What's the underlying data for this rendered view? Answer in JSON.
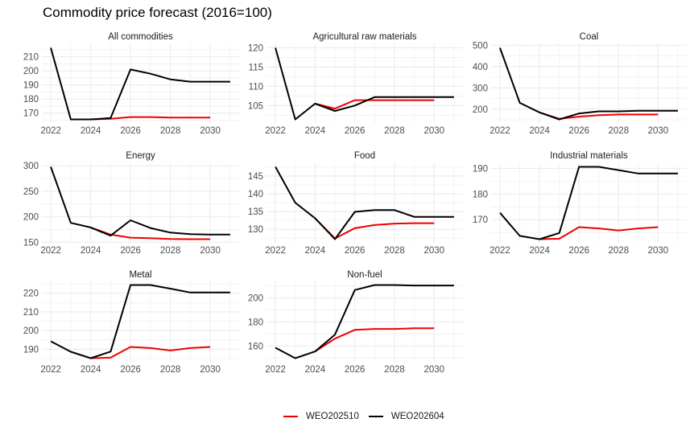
{
  "chart_data": {
    "type": "line",
    "title": "Commodity price forecast (2016=100)",
    "xlabel": "",
    "ylabel": "",
    "legend": {
      "placement": "bottom",
      "entries": [
        {
          "name": "WEO202510",
          "color": "#ee0000"
        },
        {
          "name": "WEO202604",
          "color": "#000000"
        }
      ]
    },
    "x_ticks": [
      2022,
      2024,
      2026,
      2028,
      2030
    ],
    "x_range": [
      2022,
      2031
    ],
    "grid": true,
    "panels": [
      {
        "title": "All commodities",
        "y_ticks": [
          170,
          180,
          190,
          200,
          210
        ],
        "series": [
          {
            "name": "WEO202510",
            "x": [
              2024,
              2025,
              2026,
              2027,
              2028,
              2029,
              2030
            ],
            "values": [
              165.5,
              166.0,
              167.2,
              167.2,
              166.8,
              166.8,
              166.8
            ]
          },
          {
            "name": "WEO202604",
            "x": [
              2022,
              2023,
              2024,
              2025,
              2026,
              2027,
              2028,
              2029,
              2030,
              2031
            ],
            "values": [
              216.4,
              165.5,
              165.5,
              166.5,
              201.0,
              198.0,
              194.0,
              192.3,
              192.3,
              192.3
            ]
          }
        ]
      },
      {
        "title": "Agricultural raw materials",
        "y_ticks": [
          105,
          110,
          115,
          120
        ],
        "series": [
          {
            "name": "WEO202510",
            "x": [
              2024,
              2025,
              2026,
              2027,
              2028,
              2029,
              2030
            ],
            "values": [
              105.5,
              104.2,
              106.4,
              106.4,
              106.4,
              106.4,
              106.4
            ]
          },
          {
            "name": "WEO202604",
            "x": [
              2022,
              2023,
              2024,
              2025,
              2026,
              2027,
              2028,
              2029,
              2030,
              2031
            ],
            "values": [
              120.0,
              101.4,
              105.5,
              103.6,
              105.0,
              107.2,
              107.2,
              107.2,
              107.2,
              107.2
            ]
          }
        ]
      },
      {
        "title": "Coal",
        "y_ticks": [
          200,
          300,
          400,
          500
        ],
        "series": [
          {
            "name": "WEO202510",
            "x": [
              2024,
              2025,
              2026,
              2027,
              2028,
              2029,
              2030
            ],
            "values": [
              185,
              155,
              165,
              172,
              175,
              175,
              175
            ]
          },
          {
            "name": "WEO202604",
            "x": [
              2022,
              2023,
              2024,
              2025,
              2026,
              2027,
              2028,
              2029,
              2030,
              2031
            ],
            "values": [
              488,
              230,
              185,
              152,
              180,
              190,
              190,
              193,
              193,
              193
            ]
          }
        ]
      },
      {
        "title": "Energy",
        "y_ticks": [
          150,
          200,
          250,
          300
        ],
        "series": [
          {
            "name": "WEO202510",
            "x": [
              2024,
              2025,
              2026,
              2027,
              2028,
              2029,
              2030
            ],
            "values": [
              179,
              165,
              159,
              158,
              156.5,
              156,
              156
            ]
          },
          {
            "name": "WEO202604",
            "x": [
              2022,
              2023,
              2024,
              2025,
              2026,
              2027,
              2028,
              2029,
              2030,
              2031
            ],
            "values": [
              298,
              188,
              179,
              163,
              193,
              178,
              169,
              166,
              165,
              165
            ]
          }
        ]
      },
      {
        "title": "Food",
        "y_ticks": [
          130,
          135,
          140,
          145
        ],
        "series": [
          {
            "name": "WEO202510",
            "x": [
              2024,
              2025,
              2026,
              2027,
              2028,
              2029,
              2030
            ],
            "values": [
              133.1,
              127.4,
              130.3,
              131.2,
              131.6,
              131.7,
              131.7
            ]
          },
          {
            "name": "WEO202604",
            "x": [
              2022,
              2023,
              2024,
              2025,
              2026,
              2027,
              2028,
              2029,
              2030,
              2031
            ],
            "values": [
              147.6,
              137.5,
              133.1,
              127.2,
              134.9,
              135.4,
              135.4,
              133.5,
              133.5,
              133.5
            ]
          }
        ]
      },
      {
        "title": "Industrial materials",
        "y_ticks": [
          170,
          180,
          190
        ],
        "series": [
          {
            "name": "WEO202510",
            "x": [
              2024,
              2025,
              2026,
              2027,
              2028,
              2029,
              2030
            ],
            "values": [
              162.4,
              162.6,
              167.1,
              166.6,
              165.8,
              166.6,
              167.1
            ]
          },
          {
            "name": "WEO202604",
            "x": [
              2022,
              2023,
              2024,
              2025,
              2026,
              2027,
              2028,
              2029,
              2030,
              2031
            ],
            "values": [
              172.7,
              163.7,
              162.4,
              164.8,
              190.6,
              190.6,
              189.3,
              188.0,
              188.0,
              188.0
            ]
          }
        ]
      },
      {
        "title": "Metal",
        "y_ticks": [
          190,
          200,
          210,
          220
        ],
        "series": [
          {
            "name": "WEO202510",
            "x": [
              2024,
              2025,
              2026,
              2027,
              2028,
              2029,
              2030
            ],
            "values": [
              185.2,
              185.5,
              191.2,
              190.6,
              189.3,
              190.6,
              191.2
            ]
          },
          {
            "name": "WEO202604",
            "x": [
              2022,
              2023,
              2024,
              2025,
              2026,
              2027,
              2028,
              2029,
              2030,
              2031
            ],
            "values": [
              194.2,
              188.6,
              185.2,
              188.7,
              224.3,
              224.3,
              222.4,
              220.3,
              220.3,
              220.3
            ]
          }
        ]
      },
      {
        "title": "Non-fuel",
        "y_ticks": [
          160,
          180,
          200
        ],
        "series": [
          {
            "name": "WEO202510",
            "x": [
              2024,
              2025,
              2026,
              2027,
              2028,
              2029,
              2030
            ],
            "values": [
              155.4,
              166.1,
              173.4,
              174.2,
              174.2,
              174.7,
              174.7
            ]
          },
          {
            "name": "WEO202604",
            "x": [
              2022,
              2023,
              2024,
              2025,
              2026,
              2027,
              2028,
              2029,
              2030,
              2031
            ],
            "values": [
              158.5,
              149.8,
              155.4,
              169.4,
              206.7,
              210.8,
              210.8,
              210.4,
              210.4,
              210.4
            ]
          }
        ]
      }
    ]
  }
}
